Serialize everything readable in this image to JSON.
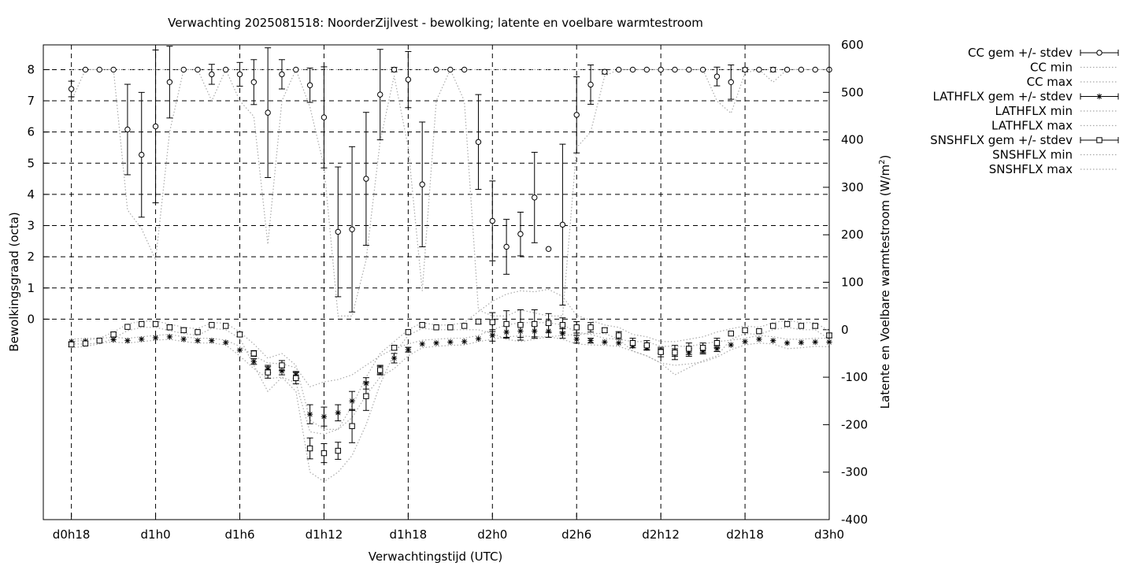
{
  "chart_data": {
    "type": "line",
    "title": "Verwachting 2025081518: NoorderZijlvest - bewolking; latente en voelbare warmtestroom",
    "xlabel": "Verwachtingstijd (UTC)",
    "ylabel": "Bewolkingsgraad (octa)",
    "y2label_prefix": "Latente en Voelbare warmtestroom (W/m",
    "y2label_sup": "2",
    "y2label_suffix": ")",
    "grid": true,
    "legend_position": "outside-top-right",
    "x_unit": "hours since d0h0",
    "xlim": [
      16,
      72
    ],
    "x_ticks": [
      {
        "value": 18,
        "label": "d0h18"
      },
      {
        "value": 24,
        "label": "d1h0"
      },
      {
        "value": 30,
        "label": "d1h6"
      },
      {
        "value": 36,
        "label": "d1h12"
      },
      {
        "value": 42,
        "label": "d1h18"
      },
      {
        "value": 48,
        "label": "d2h0"
      },
      {
        "value": 54,
        "label": "d2h6"
      },
      {
        "value": 60,
        "label": "d2h12"
      },
      {
        "value": 66,
        "label": "d2h18"
      },
      {
        "value": 72,
        "label": "d3h0"
      }
    ],
    "y_axis": {
      "label": "Bewolkingsgraad (octa)",
      "ticks": [
        0,
        1,
        2,
        3,
        4,
        5,
        6,
        7,
        8
      ]
    },
    "y2_axis": {
      "ylim": [
        -400,
        600
      ],
      "ticks": [
        -400,
        -300,
        -200,
        -100,
        0,
        100,
        200,
        300,
        400,
        500,
        600
      ]
    },
    "x": [
      18,
      19,
      20,
      21,
      22,
      23,
      24,
      25,
      26,
      27,
      28,
      29,
      30,
      31,
      32,
      33,
      34,
      35,
      36,
      37,
      38,
      39,
      40,
      41,
      42,
      43,
      44,
      45,
      46,
      47,
      48,
      49,
      50,
      51,
      52,
      53,
      54,
      55,
      56,
      57,
      58,
      59,
      60,
      61,
      62,
      63,
      64,
      65,
      66,
      67,
      68,
      69,
      70,
      71,
      72
    ],
    "series": [
      {
        "name": "CC gem +/- stdev",
        "axis": "left",
        "style": "errorbar",
        "marker": "circle",
        "values": [
          7.38,
          8,
          8,
          8,
          6.08,
          5.27,
          6.18,
          7.6,
          8,
          8,
          7.85,
          8,
          7.85,
          7.6,
          6.62,
          7.85,
          8,
          7.5,
          6.47,
          2.8,
          2.88,
          4.5,
          7.2,
          8,
          7.68,
          4.32,
          8,
          8,
          8,
          5.68,
          3.15,
          2.32,
          2.73,
          3.9,
          2.25,
          3.03,
          6.55,
          7.52,
          7.93,
          8,
          8,
          8,
          8,
          8,
          8,
          8,
          7.78,
          7.6,
          8,
          8,
          8,
          8,
          8,
          8,
          8
        ],
        "err": [
          0.25,
          0,
          0,
          0,
          1.45,
          2.0,
          2.45,
          1.15,
          0,
          0,
          0.32,
          0,
          0.38,
          0.72,
          2.08,
          0.47,
          0,
          0.55,
          1.62,
          2.08,
          2.65,
          2.13,
          1.45,
          0.07,
          0.9,
          2.0,
          0,
          0,
          0,
          1.52,
          1.28,
          0.88,
          0.7,
          1.45,
          0,
          2.58,
          1.22,
          0.63,
          0.07,
          0,
          0,
          0,
          0,
          0,
          0,
          0,
          0.3,
          0.55,
          0.06,
          0,
          0.07,
          0,
          0,
          0,
          0
        ]
      },
      {
        "name": "CC min",
        "axis": "left",
        "style": "dotted",
        "values": [
          7.0,
          8,
          8,
          8,
          3.5,
          2.9,
          1.9,
          6.0,
          8,
          8,
          7.0,
          8,
          7.0,
          6.5,
          2.4,
          7.0,
          8,
          6.8,
          4.9,
          0.1,
          0.1,
          1.9,
          5.7,
          7.8,
          5.5,
          0.9,
          7.0,
          8,
          7.0,
          0.3,
          0.1,
          0.1,
          0.3,
          0.2,
          0.1,
          0.1,
          5.5,
          6.0,
          7.8,
          8,
          8,
          8,
          8,
          8,
          8,
          8,
          7.0,
          6.6,
          7.9,
          8,
          7.6,
          8,
          8,
          8,
          8
        ]
      },
      {
        "name": "CC max",
        "axis": "left",
        "style": "dotted",
        "values": [
          8,
          8,
          8,
          8,
          8,
          8,
          8,
          8,
          8,
          8,
          8,
          8,
          8,
          8,
          8,
          8,
          8,
          8,
          8,
          8,
          8,
          8,
          8,
          8,
          8,
          8,
          8,
          8,
          8,
          8,
          8,
          8,
          8,
          8,
          8,
          8,
          8,
          8,
          8,
          8,
          8,
          8,
          8,
          8,
          8,
          8,
          8,
          8,
          8,
          8,
          8,
          8,
          8,
          8,
          8
        ]
      },
      {
        "name": "LATHFLX gem +/- stdev",
        "axis": "right",
        "style": "errorbar",
        "marker": "star",
        "values": [
          -25,
          -24,
          -23,
          -21,
          -23,
          -20,
          -17,
          -15,
          -20,
          -23,
          -23,
          -27,
          -43,
          -67,
          -83,
          -87,
          -95,
          -178,
          -183,
          -175,
          -150,
          -113,
          -85,
          -60,
          -42,
          -30,
          -28,
          -26,
          -25,
          -19,
          -12,
          -5,
          -3,
          -3,
          -3,
          -8,
          -20,
          -23,
          -26,
          -28,
          -34,
          -38,
          -45,
          -48,
          -48,
          -45,
          -40,
          -32,
          -25,
          -20,
          -23,
          -28,
          -27,
          -26,
          -26
        ],
        "err": [
          0,
          0,
          0,
          0,
          0,
          0,
          0,
          0,
          0,
          0,
          0,
          0,
          0,
          6,
          8,
          8,
          7,
          20,
          20,
          17,
          20,
          12,
          8,
          10,
          5,
          0,
          0,
          0,
          0,
          0,
          12,
          13,
          13,
          12,
          13,
          10,
          8,
          5,
          0,
          0,
          0,
          4,
          5,
          8,
          8,
          6,
          6,
          0,
          0,
          0,
          0,
          0,
          0,
          0,
          0
        ]
      },
      {
        "name": "LATHFLX min",
        "axis": "right",
        "style": "dotted",
        "values": [
          -30,
          -30,
          -28,
          -26,
          -28,
          -25,
          -22,
          -20,
          -25,
          -28,
          -28,
          -32,
          -55,
          -82,
          -103,
          -100,
          -112,
          -215,
          -220,
          -210,
          -185,
          -138,
          -100,
          -82,
          -55,
          -38,
          -35,
          -33,
          -32,
          -25,
          -20,
          -15,
          -13,
          -15,
          -15,
          -20,
          -30,
          -32,
          -33,
          -35,
          -45,
          -55,
          -70,
          -75,
          -72,
          -68,
          -58,
          -42,
          -32,
          -28,
          -30,
          -40,
          -38,
          -35,
          -36
        ]
      },
      {
        "name": "LATHFLX max",
        "axis": "right",
        "style": "dotted",
        "values": [
          -20,
          -18,
          -18,
          -16,
          -18,
          -15,
          -12,
          -10,
          -15,
          -18,
          -18,
          -22,
          -35,
          -55,
          -70,
          -72,
          -80,
          -120,
          -110,
          -105,
          -95,
          -75,
          -55,
          -40,
          -30,
          -22,
          -20,
          -18,
          -18,
          -12,
          0,
          10,
          15,
          15,
          15,
          10,
          -5,
          -10,
          -18,
          -20,
          -25,
          -25,
          -35,
          -35,
          -35,
          -30,
          -25,
          -22,
          -18,
          -12,
          -15,
          -20,
          -20,
          -18,
          -18
        ]
      },
      {
        "name": "SNSHFLX gem +/- stdev",
        "axis": "right",
        "style": "errorbar",
        "marker": "square",
        "values": [
          -31,
          -29,
          -23,
          -10,
          6,
          12,
          12,
          5,
          -1,
          -5,
          10,
          8,
          -10,
          -50,
          -90,
          -75,
          -102,
          -250,
          -260,
          -255,
          -203,
          -140,
          -85,
          -38,
          -5,
          10,
          5,
          5,
          8,
          17,
          16,
          12,
          10,
          12,
          14,
          10,
          5,
          5,
          -1,
          -12,
          -28,
          -33,
          -47,
          -48,
          -40,
          -38,
          -28,
          -8,
          -1,
          -3,
          8,
          12,
          8,
          8,
          -12
        ],
        "err": [
          5,
          0,
          0,
          5,
          0,
          0,
          0,
          5,
          5,
          0,
          0,
          0,
          5,
          6,
          12,
          10,
          12,
          22,
          20,
          18,
          35,
          30,
          10,
          5,
          0,
          4,
          0,
          0,
          0,
          5,
          20,
          28,
          32,
          30,
          20,
          15,
          12,
          10,
          5,
          8,
          10,
          10,
          10,
          15,
          12,
          10,
          10,
          0,
          0,
          0,
          0,
          0,
          0,
          5,
          5
        ]
      },
      {
        "name": "SNSHFLX min",
        "axis": "right",
        "style": "dotted",
        "values": [
          -38,
          -35,
          -30,
          -18,
          -2,
          5,
          5,
          -2,
          -8,
          -12,
          3,
          0,
          -18,
          -75,
          -130,
          -100,
          -130,
          -300,
          -320,
          -300,
          -265,
          -200,
          -115,
          -50,
          -12,
          3,
          0,
          0,
          0,
          0,
          -8,
          -20,
          -25,
          -20,
          -15,
          -12,
          -10,
          -8,
          -8,
          -20,
          -45,
          -55,
          -70,
          -95,
          -80,
          -65,
          -55,
          -20,
          -8,
          -10,
          0,
          5,
          0,
          0,
          -20
        ]
      },
      {
        "name": "SNSHFLX max",
        "axis": "right",
        "style": "dotted",
        "values": [
          -25,
          -22,
          -18,
          -5,
          12,
          18,
          18,
          12,
          5,
          2,
          15,
          14,
          -5,
          -30,
          -60,
          -50,
          -75,
          -190,
          -210,
          -210,
          -160,
          -100,
          -50,
          -25,
          0,
          15,
          10,
          10,
          15,
          38,
          60,
          75,
          82,
          80,
          85,
          70,
          30,
          20,
          10,
          5,
          -10,
          -15,
          -25,
          -25,
          -20,
          -15,
          -5,
          2,
          8,
          5,
          15,
          20,
          15,
          15,
          -3
        ]
      }
    ]
  }
}
